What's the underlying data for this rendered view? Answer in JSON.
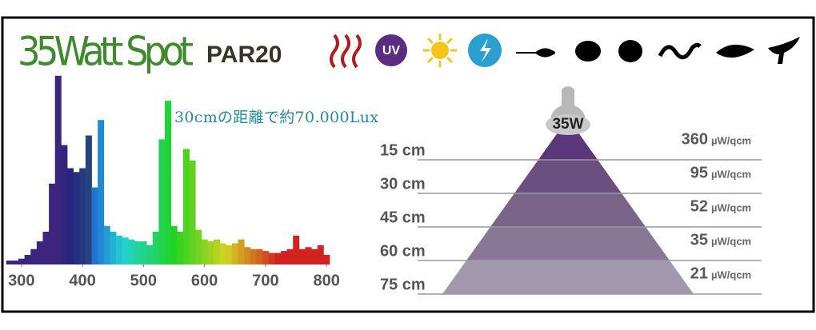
{
  "header": {
    "title": "35Watt Spot",
    "subtitle": "PAR20",
    "uv_icon": "UV"
  },
  "chart_data": [
    {
      "type": "bar",
      "annotation": "30cmの距離で約70.000Lux",
      "x": [
        280,
        290,
        300,
        310,
        320,
        330,
        340,
        350,
        360,
        370,
        380,
        390,
        400,
        410,
        420,
        430,
        440,
        450,
        460,
        470,
        480,
        490,
        500,
        510,
        520,
        530,
        540,
        550,
        560,
        570,
        580,
        590,
        600,
        610,
        620,
        630,
        640,
        650,
        660,
        670,
        680,
        690,
        700,
        710,
        720,
        730,
        740,
        750,
        760,
        770,
        780,
        790,
        800
      ],
      "values": [
        2,
        2,
        3,
        5,
        8,
        12,
        17,
        42,
        98,
        62,
        50,
        48,
        50,
        67,
        40,
        75,
        20,
        17,
        15,
        14,
        13,
        12,
        12,
        10,
        17,
        65,
        85,
        20,
        17,
        60,
        54,
        18,
        13,
        12,
        13,
        11,
        10,
        11,
        13,
        9,
        8,
        8,
        7,
        6,
        6,
        7,
        8,
        15,
        8,
        9,
        8,
        10,
        5
      ],
      "xlim": [
        278,
        805
      ],
      "ylim": [
        0,
        100
      ],
      "xticks": [
        300,
        400,
        500,
        600,
        700,
        800
      ]
    },
    {
      "type": "pyramid",
      "lamp": "35W",
      "categories": [
        "15 cm",
        "30 cm",
        "45 cm",
        "60 cm",
        "75 cm"
      ],
      "values": [
        360,
        95,
        52,
        35,
        21
      ],
      "unit": "µW/qcm",
      "colors": [
        "#59377a",
        "#6b4f80",
        "#786389",
        "#877897",
        "#a198ad"
      ]
    }
  ]
}
